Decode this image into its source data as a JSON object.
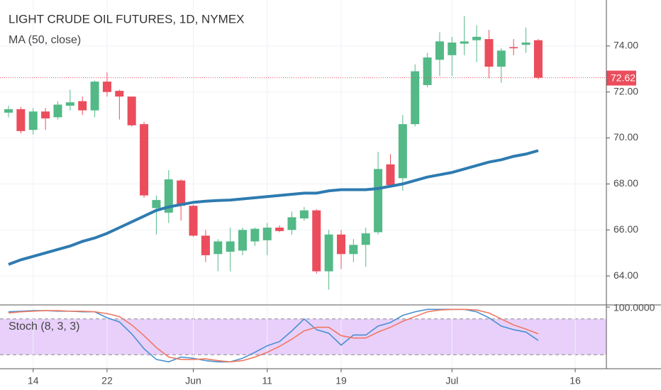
{
  "chart_data": [
    {
      "type": "candlestick",
      "title": "LIGHT CRUDE OIL FUTURES, 1D, NYMEX",
      "categories": [
        null,
        null,
        "14",
        null,
        null,
        null,
        null,
        null,
        "22",
        null,
        null,
        null,
        null,
        null,
        null,
        "Jun",
        null,
        null,
        null,
        null,
        null,
        "11",
        null,
        null,
        null,
        null,
        null,
        "19",
        null,
        null,
        null,
        null,
        null,
        null,
        null,
        null,
        "Jul",
        null,
        null,
        null,
        null,
        null,
        null,
        null,
        null,
        null,
        "16",
        null
      ],
      "open": [
        71.1,
        71.25,
        70.35,
        71.15,
        70.9,
        71.4,
        71.6,
        71.2,
        72.45,
        72.05,
        71.8,
        70.6,
        66.95,
        66.75,
        68.15,
        67.05,
        65.75,
        64.95,
        65.05,
        65.1,
        65.5,
        65.55,
        66.1,
        66.0,
        66.5,
        66.85,
        64.2,
        65.8,
        64.95,
        65.35,
        65.9,
        68.85,
        68.25,
        70.6,
        72.3,
        73.4,
        73.6,
        74.1,
        74.25,
        74.3,
        73.1,
        73.95,
        74.05,
        74.25,
        null,
        null,
        null,
        null
      ],
      "high": [
        71.4,
        71.35,
        71.3,
        71.3,
        71.6,
        72.1,
        71.8,
        72.5,
        72.85,
        72.1,
        71.8,
        70.7,
        67.5,
        68.6,
        68.2,
        67.1,
        66.0,
        65.6,
        66.1,
        66.1,
        66.1,
        66.3,
        66.2,
        66.8,
        67.0,
        66.9,
        66.0,
        66.0,
        65.6,
        66.1,
        69.4,
        69.3,
        71.0,
        73.2,
        73.7,
        74.6,
        74.4,
        75.3,
        74.9,
        74.7,
        73.9,
        74.3,
        74.8,
        74.3,
        null,
        null,
        null,
        null
      ],
      "low": [
        70.9,
        70.2,
        70.15,
        70.35,
        70.8,
        71.2,
        71.0,
        70.9,
        71.8,
        70.8,
        70.5,
        67.4,
        65.8,
        66.3,
        66.4,
        65.7,
        64.6,
        64.2,
        64.2,
        64.9,
        65.3,
        64.9,
        65.9,
        65.8,
        66.4,
        64.1,
        63.4,
        64.3,
        64.6,
        64.4,
        65.8,
        67.9,
        67.7,
        70.5,
        72.2,
        72.7,
        72.7,
        73.6,
        73.3,
        72.6,
        72.4,
        73.6,
        73.7,
        72.55,
        null,
        null,
        null,
        null
      ],
      "close": [
        71.25,
        70.3,
        71.15,
        70.85,
        71.45,
        71.55,
        71.2,
        72.45,
        72.0,
        71.8,
        70.55,
        67.5,
        67.3,
        68.2,
        67.05,
        65.75,
        64.9,
        65.5,
        65.5,
        66.0,
        66.05,
        66.1,
        65.95,
        66.55,
        66.85,
        64.2,
        65.8,
        64.95,
        65.35,
        65.85,
        68.65,
        67.95,
        70.6,
        72.9,
        73.5,
        74.2,
        74.15,
        74.2,
        74.4,
        73.1,
        73.8,
        73.9,
        74.15,
        72.62,
        null,
        null,
        null,
        null
      ],
      "up_color": "#53b987",
      "down_color": "#eb4d5c",
      "series": [
        {
          "name": "MA (50, close)",
          "color": "#2e7bb0",
          "values": [
            64.5,
            64.7,
            64.85,
            65.0,
            65.15,
            65.3,
            65.5,
            65.65,
            65.85,
            66.1,
            66.35,
            66.6,
            66.85,
            67.0,
            67.1,
            67.2,
            67.25,
            67.28,
            67.3,
            67.35,
            67.4,
            67.45,
            67.5,
            67.55,
            67.6,
            67.6,
            67.7,
            67.75,
            67.75,
            67.75,
            67.8,
            67.9,
            68.0,
            68.15,
            68.3,
            68.4,
            68.5,
            68.65,
            68.8,
            68.95,
            69.05,
            69.2,
            69.3,
            69.45,
            null,
            null,
            null,
            null
          ]
        }
      ],
      "last_price": 72.62,
      "last_price_color": "#eb4d5c",
      "ylim": [
        62.8,
        76.0
      ],
      "yticks": [
        {
          "value": 64,
          "label": "64.00"
        },
        {
          "value": 66,
          "label": "66.00"
        },
        {
          "value": 68,
          "label": "68.00"
        },
        {
          "value": 70,
          "label": "70.00"
        },
        {
          "value": 72,
          "label": "72.00"
        },
        {
          "value": 74,
          "label": "74.00"
        }
      ],
      "grid": true
    },
    {
      "type": "line",
      "title": "Stoch (8, 3, 3)",
      "series": [
        {
          "color": "#4a90d0",
          "values": [
            92,
            93,
            94,
            94,
            93,
            93,
            92,
            92,
            82,
            75,
            55,
            30,
            12,
            8,
            16,
            14,
            10,
            8,
            8,
            14,
            24,
            35,
            42,
            60,
            80,
            62,
            56,
            36,
            53,
            53,
            68,
            74,
            86,
            92,
            96,
            96,
            96,
            96,
            92,
            82,
            68,
            62,
            58,
            44,
            null,
            null,
            null,
            null
          ]
        },
        {
          "color": "#f07860",
          "values": [
            90,
            92,
            93,
            94,
            94,
            93,
            93,
            92,
            89,
            84,
            70,
            52,
            32,
            16,
            12,
            12,
            13,
            10,
            8,
            10,
            16,
            24,
            34,
            46,
            60,
            66,
            66,
            52,
            48,
            48,
            58,
            66,
            76,
            84,
            92,
            95,
            96,
            96,
            95,
            90,
            80,
            70,
            63,
            55,
            null,
            null,
            null,
            null
          ]
        }
      ],
      "bands": [
        20,
        80
      ],
      "band_color": "#e8d0fb",
      "ylim": [
        0,
        100
      ],
      "yticks": [
        {
          "value": 100,
          "label": "100.0000"
        }
      ]
    }
  ]
}
